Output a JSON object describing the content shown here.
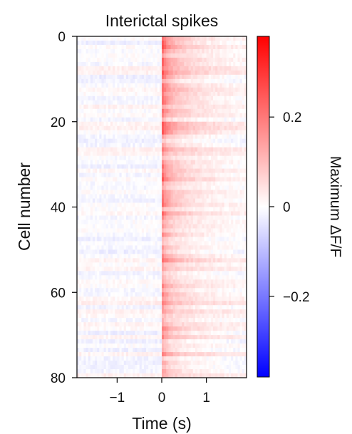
{
  "chart_data": {
    "type": "heatmap",
    "title": "Interictal spikes",
    "xlabel": "Time (s)",
    "ylabel": "Cell number",
    "x_range": [
      -1.9,
      1.9
    ],
    "y_range": [
      0,
      80
    ],
    "y_inverted": true,
    "x_ticks": [
      -1,
      0,
      1
    ],
    "x_tick_labels": [
      "−1",
      "0",
      "1"
    ],
    "y_ticks": [
      0,
      20,
      40,
      60,
      80
    ],
    "y_tick_labels": [
      "0",
      "20",
      "40",
      "60",
      "80"
    ],
    "n_cells": 80,
    "event_time": 0,
    "value_range": [
      -0.38,
      0.38
    ],
    "colorbar": {
      "label": "Maximum ΔF/F",
      "ticks": [
        0.2,
        0,
        -0.2
      ],
      "tick_labels": [
        "0.2",
        "0",
        "−0.2"
      ],
      "colors": {
        "high": "#ff0000",
        "mid": "#ffffff",
        "low": "#0000ff"
      }
    },
    "summary": {
      "pre_event_mean": 0.0,
      "peak_response_range": [
        0.05,
        0.3
      ],
      "post_event_decay_s": 1.9
    }
  }
}
